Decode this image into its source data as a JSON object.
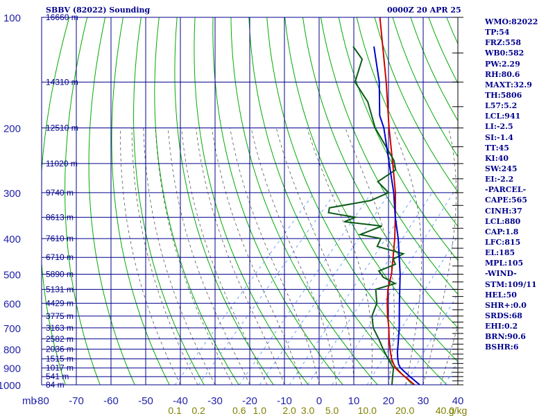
{
  "title": "SBBV (82022) Sounding",
  "valid_time": "0000Z 20 APR 25",
  "indices": [
    "WMO:82022",
    "TP:54",
    "FRZ:558",
    "WB0:582",
    "PW:2.29",
    "RH:80.6",
    "MAXT:32.9",
    "TH:5806",
    "L57:5.2",
    "LCL:941",
    "LI:-2.5",
    "SI:-1.4",
    "TT:45",
    "KI:40",
    "SW:245",
    "EI:-2.2",
    "-PARCEL-",
    "CAPE:565",
    "CINH:37",
    "LCL:880",
    "CAP:1.8",
    "LFC:815",
    "EL:185",
    "MPL:105",
    "-WIND-",
    "STM:109/11",
    "HEL:50",
    "SHR+:0.0",
    "SRDS:68",
    "EHI:0.2",
    "BRN:90.6",
    "BSHR:6"
  ],
  "colors": {
    "isobar": "#00008b",
    "isotherm": "#00008b",
    "dry_adiabat": "#00aa00",
    "moist_adiabat": "#555555",
    "mixing_ratio": "#6fa0ff",
    "temperature": "#cc0000",
    "dewpoint": "#0b5a17",
    "parcel": "#0000cc",
    "axis_text": "#2222aa",
    "mixing_text": "#808000"
  },
  "chart_data": {
    "type": "line",
    "subtype": "skew-T log-P sounding",
    "x_axis_label": "mb",
    "x_ticks": [
      -80,
      -70,
      -60,
      -50,
      -40,
      -30,
      -20,
      -10,
      0,
      10,
      20,
      30,
      40
    ],
    "xlim": [
      -80,
      40
    ],
    "y_scale": "log",
    "ylim": [
      1000,
      100
    ],
    "pressure_ticks": [
      100,
      200,
      300,
      400,
      500,
      600,
      700,
      800,
      900,
      1000
    ],
    "height_labels": [
      {
        "p": 100,
        "label": "16660 m"
      },
      {
        "p": 150,
        "label": "14310 m"
      },
      {
        "p": 200,
        "label": "12510 m"
      },
      {
        "p": 250,
        "label": "11020 m"
      },
      {
        "p": 300,
        "label": "9740 m"
      },
      {
        "p": 350,
        "label": "8613 m"
      },
      {
        "p": 400,
        "label": "7610 m"
      },
      {
        "p": 450,
        "label": "6710 m"
      },
      {
        "p": 500,
        "label": "5890 m"
      },
      {
        "p": 550,
        "label": "5131 m"
      },
      {
        "p": 600,
        "label": "4429 m"
      },
      {
        "p": 650,
        "label": "3775 m"
      },
      {
        "p": 700,
        "label": "3163 m"
      },
      {
        "p": 750,
        "label": "2582 m"
      },
      {
        "p": 800,
        "label": "2036 m"
      },
      {
        "p": 850,
        "label": "1515 m"
      },
      {
        "p": 900,
        "label": "1017 m"
      },
      {
        "p": 950,
        "label": "541 m"
      },
      {
        "p": 1000,
        "label": "84 m"
      }
    ],
    "mixing_ratio_labels": [
      "0.1",
      "0.2",
      "0.6",
      "1.0",
      "2.0",
      "3.0",
      "5.0",
      "10.0",
      "20.0",
      "40.0"
    ],
    "mixing_ratio_unit": "g/kg",
    "grid": true,
    "series": [
      {
        "key": "temperature",
        "points": [
          [
            1000,
            27.5
          ],
          [
            950,
            22.5
          ],
          [
            925,
            20.0
          ],
          [
            900,
            17.5
          ],
          [
            850,
            14.0
          ],
          [
            800,
            11.0
          ],
          [
            750,
            8.0
          ],
          [
            700,
            5.0
          ],
          [
            650,
            1.5
          ],
          [
            600,
            -2.0
          ],
          [
            550,
            -5.5
          ],
          [
            500,
            -8.5
          ],
          [
            450,
            -12.5
          ],
          [
            400,
            -17.0
          ],
          [
            350,
            -22.5
          ],
          [
            300,
            -29.0
          ],
          [
            250,
            -37.5
          ],
          [
            200,
            -48.0
          ],
          [
            150,
            -61.0
          ],
          [
            100,
            -80.0
          ]
        ]
      },
      {
        "key": "dewpoint",
        "points": [
          [
            1000,
            21.0
          ],
          [
            950,
            19.0
          ],
          [
            900,
            17.0
          ],
          [
            850,
            13.0
          ],
          [
            800,
            9.0
          ],
          [
            750,
            5.0
          ],
          [
            700,
            0.5
          ],
          [
            650,
            -3.0
          ],
          [
            600,
            -5.0
          ],
          [
            550,
            -9.0
          ],
          [
            530,
            -5.0
          ],
          [
            510,
            -10.0
          ],
          [
            490,
            -13.0
          ],
          [
            470,
            -10.0
          ],
          [
            455,
            -12.0
          ],
          [
            440,
            -10.5
          ],
          [
            420,
            -20.0
          ],
          [
            400,
            -21.0
          ],
          [
            390,
            -28.0
          ],
          [
            370,
            -24.0
          ],
          [
            360,
            -36.0
          ],
          [
            350,
            -34.0
          ],
          [
            340,
            -43.0
          ],
          [
            330,
            -44.0
          ],
          [
            315,
            -34.0
          ],
          [
            300,
            -31.0
          ],
          [
            280,
            -37.0
          ],
          [
            260,
            -35.0
          ],
          [
            245,
            -38.0
          ],
          [
            200,
            -52.0
          ],
          [
            170,
            -61.0
          ],
          [
            150,
            -70.0
          ],
          [
            130,
            -74.0
          ],
          [
            120,
            -80.0
          ]
        ]
      },
      {
        "key": "parcel",
        "points": [
          [
            1000,
            29.0
          ],
          [
            950,
            24.0
          ],
          [
            900,
            19.0
          ],
          [
            880,
            17.5
          ],
          [
            850,
            15.8
          ],
          [
            815,
            13.9
          ],
          [
            800,
            13.2
          ],
          [
            700,
            8.0
          ],
          [
            600,
            1.5
          ],
          [
            500,
            -6.0
          ],
          [
            400,
            -16.0
          ],
          [
            350,
            -22.5
          ],
          [
            300,
            -29.5
          ],
          [
            250,
            -38.5
          ],
          [
            200,
            -49.5
          ],
          [
            185,
            -54.0
          ],
          [
            150,
            -63.0
          ],
          [
            120,
            -74.0
          ]
        ]
      }
    ]
  }
}
